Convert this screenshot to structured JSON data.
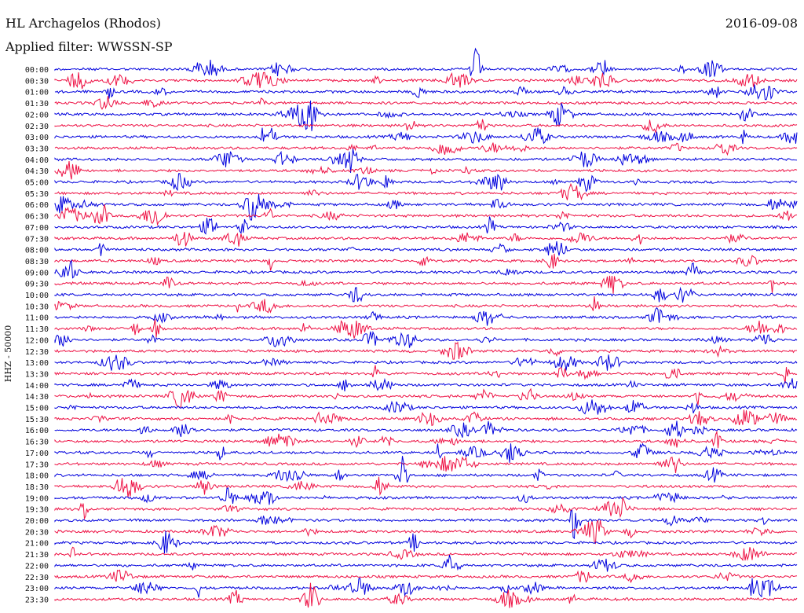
{
  "header": {
    "station": "HL Archagelos (Rhodos)",
    "date": "2016-09-08",
    "filter": "Applied filter: WWSSN-SP",
    "channel_label": "HHZ - 50000"
  },
  "chart_data": {
    "type": "line",
    "title": "HL Archagelos (Rhodos)",
    "subtitle": "Applied filter: WWSSN-SP",
    "ylabel": "HHZ - 50000",
    "tick_labels": [
      "00:00",
      "00:30",
      "01:00",
      "01:30",
      "02:00",
      "02:30",
      "03:00",
      "03:30",
      "04:00",
      "04:30",
      "05:00",
      "05:30",
      "06:00",
      "06:30",
      "07:00",
      "07:30",
      "08:00",
      "08:30",
      "09:00",
      "09:30",
      "10:00",
      "10:30",
      "11:00",
      "11:30",
      "12:00",
      "12:30",
      "13:00",
      "13:30",
      "14:00",
      "14:30",
      "15:00",
      "15:30",
      "16:00",
      "16:30",
      "17:00",
      "17:30",
      "18:00",
      "18:30",
      "19:00",
      "19:30",
      "20:00",
      "20:30",
      "21:00",
      "21:30",
      "22:00",
      "22:30",
      "23:00",
      "23:30"
    ],
    "colors": {
      "even": "#0000dd",
      "odd": "#ee1144"
    },
    "notable_events": [
      {
        "trace": "20:00",
        "minute": 21,
        "note": "large event"
      },
      {
        "trace": "00:00",
        "minute": 17,
        "note": "spike"
      },
      {
        "trace": "18:00",
        "minute": 14,
        "note": "burst"
      }
    ]
  }
}
